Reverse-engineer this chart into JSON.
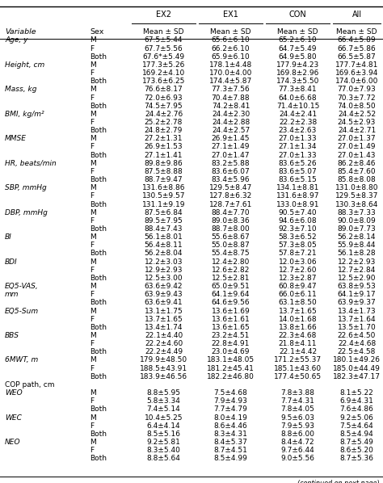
{
  "sub_headers": [
    "Variable",
    "Sex",
    "Mean ± SD",
    "Mean ± SD",
    "Mean ± SD",
    "Mean ± SD"
  ],
  "group_headers": [
    "EX2",
    "EX1",
    "CON",
    "All"
  ],
  "rows": [
    [
      "Age, y",
      "M",
      "67.5±5.44",
      "65.6±6.10",
      "65.2±6.10",
      "66.4±5.89"
    ],
    [
      "",
      "F",
      "67.7±5.56",
      "66.2±6.10",
      "64.7±5.49",
      "66.7±5.86"
    ],
    [
      "",
      "Both",
      "67.6*±5.49",
      "65.9±6.10",
      "64.9±5.80",
      "66.5±5.87"
    ],
    [
      "Height, cm",
      "M",
      "177.3±5.26",
      "178.1±4.48",
      "177.9±4.23",
      "177.7±4.81"
    ],
    [
      "",
      "F",
      "169.2±4.10",
      "170.0±4.00",
      "169.8±2.96",
      "169.6±3.94"
    ],
    [
      "",
      "Both",
      "173.6±6.25",
      "174.4±5.87",
      "174.3±5.50",
      "174.0±6.00"
    ],
    [
      "Mass, kg",
      "M",
      "76.6±8.17",
      "77.3±7.56",
      "77.3±8.41",
      "77.0±7.93"
    ],
    [
      "",
      "F",
      "72.0±6.93",
      "70.4±7.88",
      "64.0±6.68",
      "70.3±7.72"
    ],
    [
      "",
      "Both",
      "74.5±7.95",
      "74.2±8.41",
      "71.4±10.15",
      "74.0±8.50"
    ],
    [
      "BMI, kg/m²",
      "M",
      "24.4±2.76",
      "24.4±2.30",
      "24.4±2.41",
      "24.4±2.52"
    ],
    [
      "",
      "F",
      "25.2±2.78",
      "24.4±2.88",
      "22.2±2.38",
      "24.5±2.93"
    ],
    [
      "",
      "Both",
      "24.8±2.79",
      "24.4±2.57",
      "23.4±2.63",
      "24.4±2.71"
    ],
    [
      "MMSE",
      "M",
      "27.2±1.31",
      "26.9±1.45",
      "27.0±1.33",
      "27.0±1.37"
    ],
    [
      "",
      "F",
      "26.9±1.53",
      "27.1±1.49",
      "27.1±1.34",
      "27.0±1.49"
    ],
    [
      "",
      "Both",
      "27.1±1.41",
      "27.0±1.47",
      "27.0±1.33",
      "27.0±1.43"
    ],
    [
      "HR, beats/min",
      "M",
      "89.8±9.86",
      "83.2±5.88",
      "83.6±5.26",
      "86.2±8.46"
    ],
    [
      "",
      "F",
      "87.5±8.88",
      "83.6±6.07",
      "83.6±5.07",
      "85.4±7.60"
    ],
    [
      "",
      "Both",
      "88.7±9.47",
      "83.4±5.96",
      "83.6±5.15",
      "85.8±8.08"
    ],
    [
      "SBP, mmHg",
      "M",
      "131.6±8.86",
      "129.5±8.47",
      "134.1±8.81",
      "131.0±8.80"
    ],
    [
      "",
      "F",
      "130.5±9.57",
      "127.8±6.32",
      "131.6±8.97",
      "129.5±8.37"
    ],
    [
      "",
      "Both",
      "131.1±9.19",
      "128.7±7.61",
      "133.0±8.91",
      "130.3±8.64"
    ],
    [
      "DBP, mmHg",
      "M",
      "87.5±6.84",
      "88.4±7.70",
      "90.5±7.40",
      "88.3±7.33"
    ],
    [
      "",
      "F",
      "89.5±7.95",
      "89.0±8.36",
      "94.6±6.08",
      "90.0±8.09"
    ],
    [
      "",
      "Both",
      "88.4±7.43",
      "88.7±8.00",
      "92.3±7.10",
      "89.0±7.73"
    ],
    [
      "BI",
      "M",
      "56.1±8.01",
      "55.6±8.67",
      "58.3±6.52",
      "56.2±8.14"
    ],
    [
      "",
      "F",
      "56.4±8.11",
      "55.0±8.87",
      "57.3±8.05",
      "55.9±8.44"
    ],
    [
      "",
      "Both",
      "56.2±8.04",
      "55.4±8.75",
      "57.8±7.21",
      "56.1±8.28"
    ],
    [
      "BDI",
      "M",
      "12.2±3.03",
      "12.4±2.80",
      "12.0±3.06",
      "12.2±2.93"
    ],
    [
      "",
      "F",
      "12.9±2.93",
      "12.6±2.82",
      "12.7±2.60",
      "12.7±2.84"
    ],
    [
      "",
      "Both",
      "12.5±3.00",
      "12.5±2.81",
      "12.3±2.87",
      "12.5±2.90"
    ],
    [
      "EQ5-VAS,",
      "M",
      "63.6±9.42",
      "65.0±9.51",
      "60.8±9.47",
      "63.8±9.53"
    ],
    [
      "mm",
      "F",
      "63.9±9.43",
      "64.1±9.64",
      "66.0±6.11",
      "64.1±9.17"
    ],
    [
      "",
      "Both",
      "63.6±9.41",
      "64.6±9.56",
      "63.1±8.50",
      "63.9±9.37"
    ],
    [
      "EQ5-Sum",
      "M",
      "13.1±1.75",
      "13.6±1.69",
      "13.7±1.65",
      "13.4±1.73"
    ],
    [
      "",
      "F",
      "13.7±1.65",
      "13.6±1.61",
      "14.0±1.68",
      "13.7±1.64"
    ],
    [
      "",
      "Both",
      "13.4±1.74",
      "13.6±1.65",
      "13.8±1.66",
      "13.5±1.70"
    ],
    [
      "BBS",
      "M",
      "22.1±4.40",
      "23.2±4.51",
      "22.3±4.68",
      "22.6±4.50"
    ],
    [
      "",
      "F",
      "22.2±4.60",
      "22.8±4.91",
      "21.8±4.11",
      "22.4±4.68"
    ],
    [
      "",
      "Both",
      "22.2±4.49",
      "23.0±4.69",
      "22.1±4.42",
      "22.5±4.58"
    ],
    [
      "6MWT, m",
      "M",
      "179.9±48.50",
      "183.1±48.05",
      "171.2±55.37",
      "180.1±49.26"
    ],
    [
      "",
      "F",
      "188.5±43.91",
      "181.2±45.41",
      "185.1±43.60",
      "185.0±44.49"
    ],
    [
      "",
      "Both",
      "183.9±46.56",
      "182.2±46.80",
      "177.4±50.65",
      "182.3±47.17"
    ],
    [
      "COP path, cm",
      "",
      "",
      "",
      "",
      ""
    ],
    [
      "WEO",
      "M",
      "8.8±5.95",
      "7.5±4.68",
      "7.8±3.88",
      "8.1±5.22"
    ],
    [
      "",
      "F",
      "5.8±3.34",
      "7.9±4.93",
      "7.7±4.31",
      "6.9±4.31"
    ],
    [
      "",
      "Both",
      "7.4±5.14",
      "7.7±4.79",
      "7.8±4.05",
      "7.6±4.86"
    ],
    [
      "WEC",
      "M",
      "10.4±5.25",
      "8.0±4.19",
      "9.5±6.03",
      "9.2±5.06"
    ],
    [
      "",
      "F",
      "6.4±4.14",
      "8.6±4.46",
      "7.9±5.93",
      "7.5±4.64"
    ],
    [
      "",
      "Both",
      "8.5±5.16",
      "8.3±4.31",
      "8.8±6.00",
      "8.5±4.94"
    ],
    [
      "NEO",
      "M",
      "9.2±5.81",
      "8.4±5.37",
      "8.4±4.72",
      "8.7±5.49"
    ],
    [
      "",
      "F",
      "8.3±5.40",
      "8.7±4.51",
      "9.7±6.44",
      "8.6±5.20"
    ],
    [
      "",
      "Both",
      "8.8±5.64",
      "8.5±4.99",
      "9.0±5.56",
      "8.7±5.36"
    ]
  ],
  "footer": "(continued on next page)",
  "italic_vars": [
    "Age, y",
    "Height, cm",
    "Mass, kg",
    "BMI, kg/m²",
    "MMSE",
    "HR, beats/min",
    "SBP, mmHg",
    "DBP, mmHg",
    "BI",
    "BDI",
    "EQ5-VAS,",
    "mm",
    "EQ5-Sum",
    "BBS",
    "6MWT, m",
    "WEO",
    "WEC",
    "NEO"
  ],
  "normal_vars": [
    "COP path, cm"
  ]
}
